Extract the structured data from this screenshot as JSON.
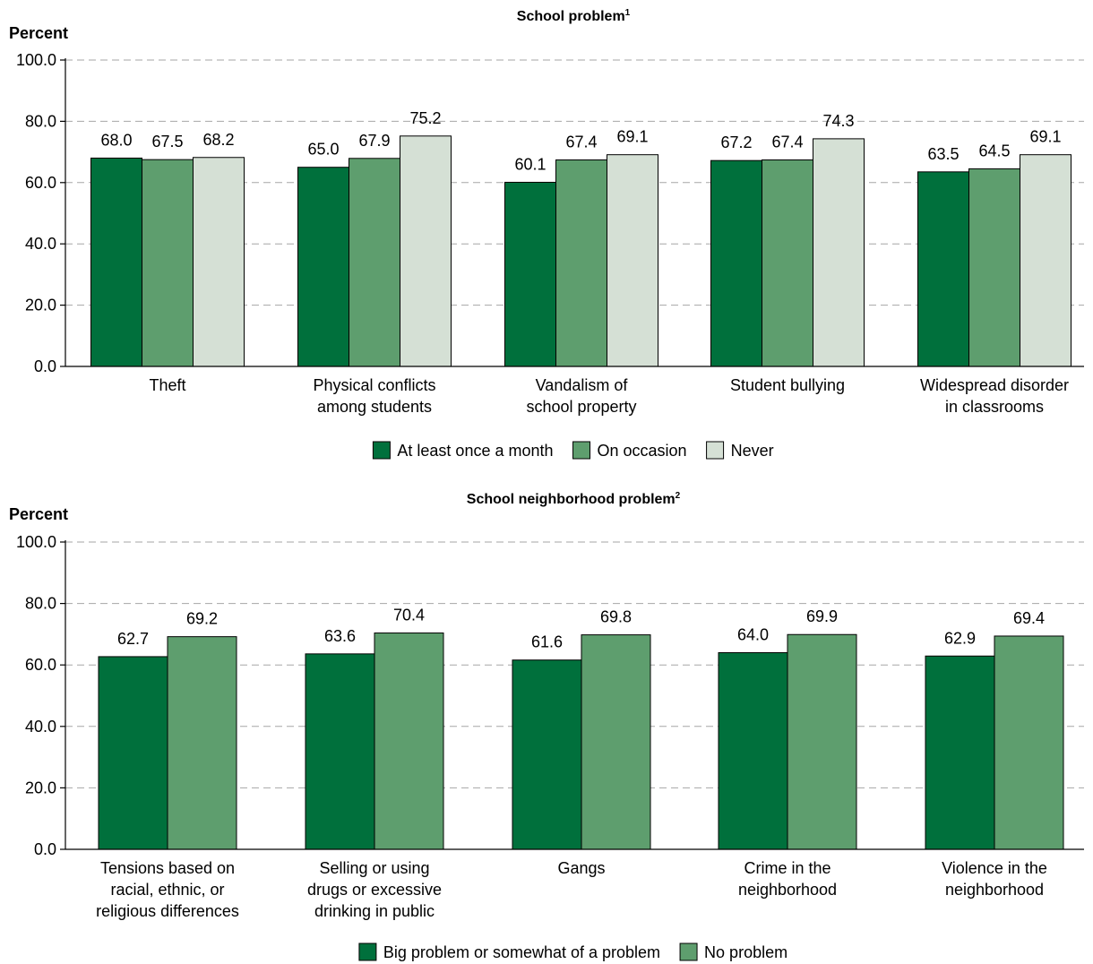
{
  "chart_data": [
    {
      "type": "bar",
      "title": "School problem",
      "title_footnote": "1",
      "ylabel": "Percent",
      "ylim": [
        0,
        100
      ],
      "yticks": [
        "0.0",
        "20.0",
        "40.0",
        "60.0",
        "80.0",
        "100.0"
      ],
      "grid": true,
      "legend_position": "bottom",
      "categories": [
        [
          "Theft"
        ],
        [
          "Physical conflicts",
          "among students"
        ],
        [
          "Vandalism of",
          "school property"
        ],
        [
          "Student bullying"
        ],
        [
          "Widespread disorder",
          "in classrooms"
        ]
      ],
      "series": [
        {
          "name": "At least once a month",
          "color": "#00703c",
          "values": [
            68.0,
            65.0,
            60.1,
            67.2,
            63.5
          ],
          "labels": [
            "68.0",
            "65.0",
            "60.1",
            "67.2",
            "63.5"
          ]
        },
        {
          "name": "On occasion",
          "color": "#5e9e6e",
          "values": [
            67.5,
            67.9,
            67.4,
            67.4,
            64.5
          ],
          "labels": [
            "67.5",
            "67.9",
            "67.4",
            "67.4",
            "64.5"
          ]
        },
        {
          "name": "Never",
          "color": "#d5e0d5",
          "values": [
            68.2,
            75.2,
            69.1,
            74.3,
            69.1
          ],
          "labels": [
            "68.2",
            "75.2",
            "69.1",
            "74.3",
            "69.1"
          ]
        }
      ]
    },
    {
      "type": "bar",
      "title": "School neighborhood problem",
      "title_footnote": "2",
      "ylabel": "Percent",
      "ylim": [
        0,
        100
      ],
      "yticks": [
        "0.0",
        "20.0",
        "40.0",
        "60.0",
        "80.0",
        "100.0"
      ],
      "grid": true,
      "legend_position": "bottom",
      "categories": [
        [
          "Tensions based on",
          "racial, ethnic, or",
          "religious differences"
        ],
        [
          "Selling or using",
          "drugs or excessive",
          "drinking in public"
        ],
        [
          "Gangs"
        ],
        [
          "Crime in the",
          "neighborhood"
        ],
        [
          "Violence in the",
          "neighborhood"
        ]
      ],
      "series": [
        {
          "name": "Big problem or somewhat of a problem",
          "color": "#00703c",
          "values": [
            62.7,
            63.6,
            61.6,
            64.0,
            62.9
          ],
          "labels": [
            "62.7",
            "63.6",
            "61.6",
            "64.0",
            "62.9"
          ]
        },
        {
          "name": "No problem",
          "color": "#5e9e6e",
          "values": [
            69.2,
            70.4,
            69.8,
            69.9,
            69.4
          ],
          "labels": [
            "69.2",
            "70.4",
            "69.8",
            "69.9",
            "69.4"
          ]
        }
      ]
    }
  ]
}
